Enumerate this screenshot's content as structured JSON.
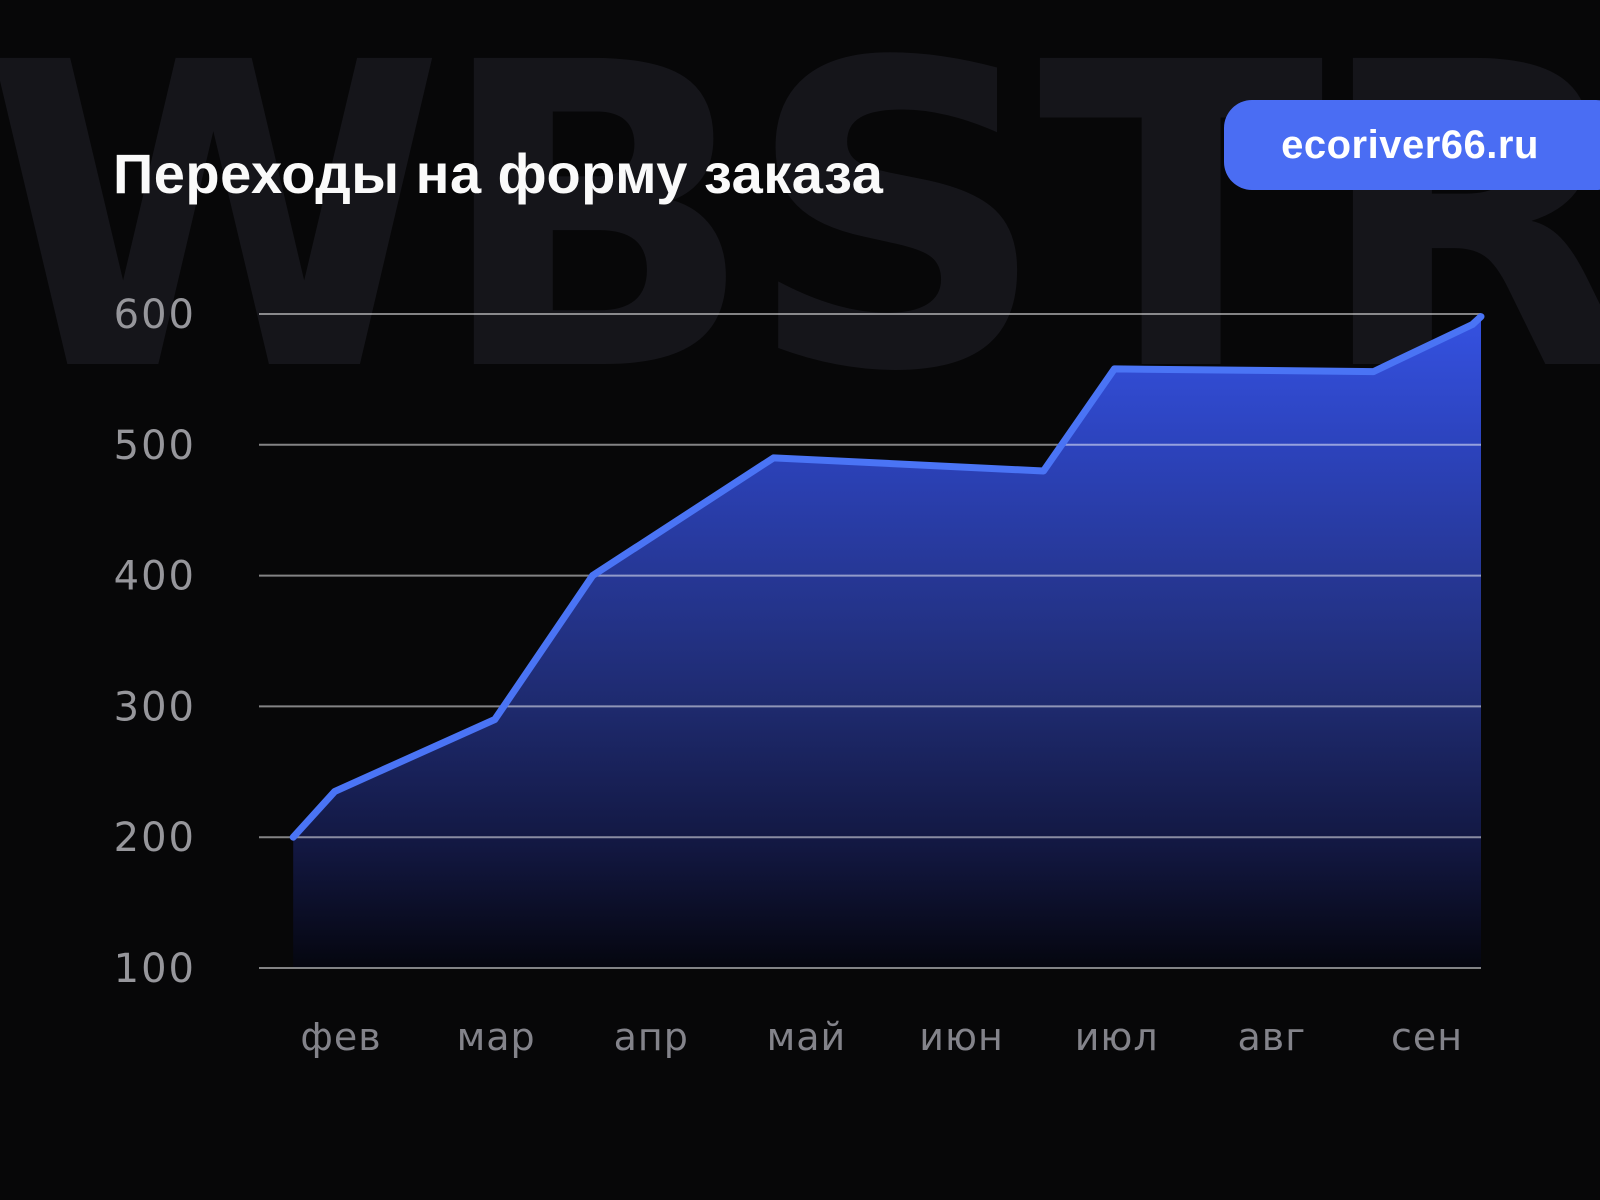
{
  "header": {
    "title": "Переходы на форму заказа",
    "badge": "ecoriver66.ru"
  },
  "watermark": "WBSTR",
  "chart_data": {
    "type": "area",
    "title": "Переходы на форму заказа",
    "categories": [
      "фев",
      "мар",
      "апр",
      "май",
      "июн",
      "июл",
      "авг",
      "сен"
    ],
    "values": [
      200,
      290,
      430,
      490,
      480,
      555,
      555,
      595
    ],
    "xlabel": "",
    "ylabel": "",
    "yticks": [
      600,
      500,
      400,
      300,
      200,
      100
    ],
    "ylim": [
      100,
      600
    ],
    "grid": "horizontal",
    "legend_position": "none",
    "line_points": [
      {
        "fx": 0.028,
        "v": 200
      },
      {
        "fx": 0.062,
        "v": 235
      },
      {
        "fx": 0.193,
        "v": 290
      },
      {
        "fx": 0.273,
        "v": 400
      },
      {
        "fx": 0.421,
        "v": 490
      },
      {
        "fx": 0.642,
        "v": 480
      },
      {
        "fx": 0.7,
        "v": 558
      },
      {
        "fx": 0.912,
        "v": 556
      },
      {
        "fx": 0.993,
        "v": 592
      },
      {
        "fx": 1.0,
        "v": 598
      }
    ],
    "colors": {
      "stroke": "#4a74f5",
      "badge": "#4a6df3",
      "grid_line": "rgba(255,255,255,0.5)",
      "axis_label": "#96969b",
      "month_label": "#83838a",
      "title_text": "#fafafa",
      "watermark_text": "#15151a",
      "background": "#070708",
      "fill_stops": [
        "#3552e2",
        "#2c43bd",
        "#263795",
        "#1e2a6e",
        "#121740",
        "#05060f"
      ]
    }
  }
}
